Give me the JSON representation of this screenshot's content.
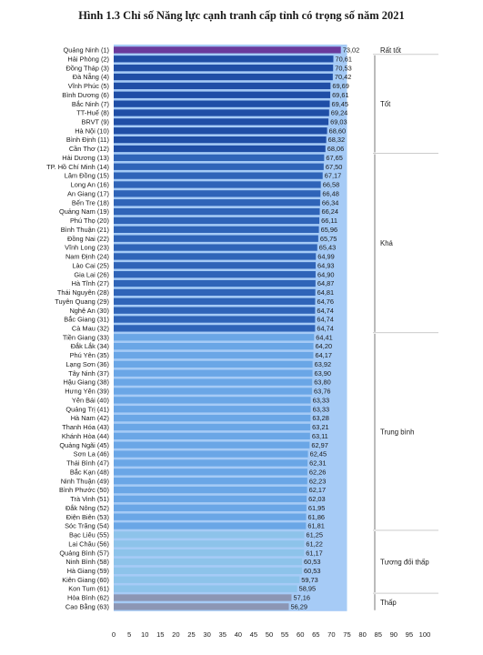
{
  "chart_data": {
    "type": "bar",
    "orientation": "horizontal",
    "title": "Hình 1.3 Chỉ số Năng lực cạnh tranh cấp tỉnh có trọng số năm 2021",
    "xlim": [
      0,
      100
    ],
    "xticks": [
      "0",
      "5",
      "10",
      "15",
      "20",
      "25",
      "30",
      "35",
      "40",
      "45",
      "50",
      "55",
      "60",
      "65",
      "70",
      "75",
      "80",
      "85",
      "90",
      "95",
      "100"
    ],
    "grid": false,
    "categories": [
      "Quảng Ninh (1)",
      "Hải Phòng (2)",
      "Đồng Tháp (3)",
      "Đà Nẵng (4)",
      "Vĩnh Phúc (5)",
      "Bình Dương (6)",
      "Bắc Ninh (7)",
      "TT-Huế (8)",
      "BRVT (9)",
      "Hà Nội (10)",
      "Bình Định (11)",
      "Cần Thơ (12)",
      "Hải Dương (13)",
      "TP. Hồ Chí Minh (14)",
      "Lâm Đồng (15)",
      "Long An (16)",
      "An Giang (17)",
      "Bến Tre (18)",
      "Quảng Nam (19)",
      "Phú Thọ (20)",
      "Bình Thuận (21)",
      "Đồng Nai (22)",
      "Vĩnh Long (23)",
      "Nam Định (24)",
      "Lào Cai (25)",
      "Gia Lai (26)",
      "Hà Tĩnh (27)",
      "Thái Nguyên (28)",
      "Tuyên Quang (29)",
      "Nghệ An (30)",
      "Bắc Giang (31)",
      "Cà Mau (32)",
      "Tiền Giang (33)",
      "Đắk Lắk (34)",
      "Phú Yên (35)",
      "Lạng Sơn (36)",
      "Tây Ninh (37)",
      "Hậu Giang (38)",
      "Hưng Yên (39)",
      "Yên Bái (40)",
      "Quảng Trị (41)",
      "Hà Nam (42)",
      "Thanh Hóa (43)",
      "Khánh Hòa (44)",
      "Quảng Ngãi (45)",
      "Sơn La (46)",
      "Thái Bình (47)",
      "Bắc Kạn (48)",
      "Ninh Thuận (49)",
      "Bình Phước (50)",
      "Trà Vinh (51)",
      "Đắk Nông (52)",
      "Điện Biên (53)",
      "Sóc Trăng (54)",
      "Bạc Liêu (55)",
      "Lai Châu (56)",
      "Quảng Bình (57)",
      "Ninh Bình (58)",
      "Hà Giang (59)",
      "Kiên Giang (60)",
      "Kon Tum (61)",
      "Hòa Bình (62)",
      "Cao Bằng (63)"
    ],
    "values": [
      73.02,
      70.61,
      70.53,
      70.42,
      69.69,
      69.61,
      69.45,
      69.24,
      69.03,
      68.6,
      68.32,
      68.06,
      67.65,
      67.5,
      67.17,
      66.58,
      66.48,
      66.34,
      66.24,
      66.11,
      65.96,
      65.75,
      65.43,
      64.99,
      64.93,
      64.9,
      64.87,
      64.81,
      64.76,
      64.74,
      64.74,
      64.74,
      64.41,
      64.2,
      64.17,
      63.92,
      63.9,
      63.8,
      63.76,
      63.33,
      63.33,
      63.28,
      63.21,
      63.11,
      62.97,
      62.45,
      62.31,
      62.26,
      62.23,
      62.17,
      62.03,
      61.95,
      61.86,
      61.81,
      61.25,
      61.22,
      61.17,
      60.53,
      60.53,
      59.73,
      58.95,
      57.16,
      56.29
    ],
    "value_labels": [
      "73,02",
      "70,61",
      "70,53",
      "70,42",
      "69,69",
      "69,61",
      "69,45",
      "69,24",
      "69,03",
      "68,60",
      "68,32",
      "68,06",
      "67,65",
      "67,50",
      "67,17",
      "66,58",
      "66,48",
      "66,34",
      "66,24",
      "66,11",
      "65,96",
      "65,75",
      "65,43",
      "64,99",
      "64,93",
      "64,90",
      "64,87",
      "64,81",
      "64,76",
      "64,74",
      "64,74",
      "64,74",
      "64,41",
      "64,20",
      "64,17",
      "63,92",
      "63,90",
      "63,80",
      "63,76",
      "63,33",
      "63,33",
      "63,28",
      "63,21",
      "63,11",
      "62,97",
      "62,45",
      "62,31",
      "62,26",
      "62,23",
      "62,17",
      "62,03",
      "61,95",
      "61,86",
      "61,81",
      "61,25",
      "61,22",
      "61,17",
      "60,53",
      "60,53",
      "59,73",
      "58,95",
      "57,16",
      "56,29"
    ],
    "groups": [
      {
        "name": "Rất tốt",
        "start": 0,
        "end": 0,
        "color": "#6a3a9c"
      },
      {
        "name": "Tốt",
        "start": 1,
        "end": 11,
        "color": "#1f4ea6"
      },
      {
        "name": "Khá",
        "start": 12,
        "end": 31,
        "color": "#2f64b8"
      },
      {
        "name": "Trung bình",
        "start": 32,
        "end": 53,
        "color": "#6aa6e6"
      },
      {
        "name": "Tương đối thấp",
        "start": 54,
        "end": 60,
        "color": "#8dc3ea"
      },
      {
        "name": "Thấp",
        "start": 61,
        "end": 62,
        "color": "#8c96b4"
      }
    ],
    "highlight_band": {
      "from": 0,
      "to": 75,
      "color": "#a6cbf6"
    }
  }
}
